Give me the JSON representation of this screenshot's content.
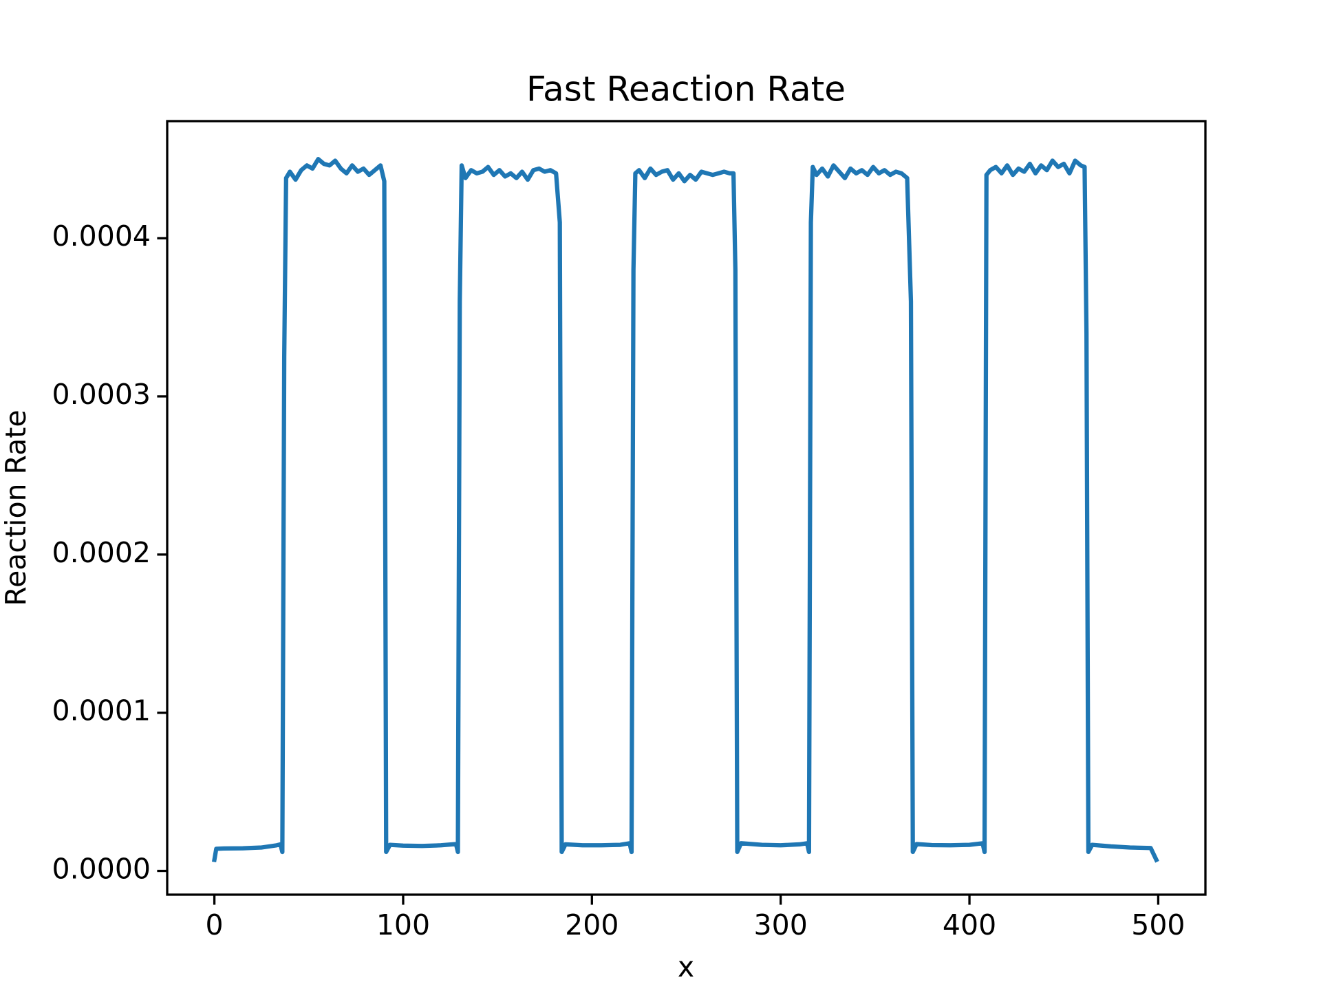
{
  "chart_data": {
    "type": "line",
    "title": "Fast Reaction Rate",
    "x_label": "x",
    "y_label": "Reaction Rate",
    "color": "#1f77b4",
    "x": [
      0,
      1,
      5,
      15,
      25,
      33,
      35,
      36,
      37,
      38,
      40,
      43,
      46,
      49,
      52,
      55,
      58,
      61,
      64,
      67,
      70,
      73,
      76,
      79,
      82,
      85,
      88,
      90,
      91,
      93,
      100,
      110,
      120,
      128,
      129,
      130,
      131,
      133,
      136,
      139,
      142,
      145,
      148,
      151,
      154,
      157,
      160,
      163,
      166,
      169,
      172,
      175,
      178,
      181,
      183,
      184,
      186,
      195,
      205,
      215,
      220,
      221,
      222,
      223,
      225,
      228,
      231,
      234,
      237,
      240,
      243,
      246,
      249,
      252,
      255,
      258,
      261,
      264,
      267,
      270,
      273,
      275,
      276,
      277,
      279,
      290,
      300,
      310,
      314,
      315,
      316,
      317,
      319,
      322,
      325,
      328,
      331,
      334,
      337,
      340,
      343,
      346,
      349,
      352,
      355,
      358,
      361,
      364,
      367,
      369,
      370,
      372,
      380,
      390,
      400,
      407,
      408,
      409,
      411,
      414,
      417,
      420,
      423,
      426,
      429,
      432,
      435,
      438,
      441,
      444,
      447,
      450,
      453,
      456,
      459,
      461,
      462,
      463,
      465,
      475,
      485,
      496,
      499
    ],
    "values": [
      7e-06,
      1.4e-05,
      1.42e-05,
      1.43e-05,
      1.48e-05,
      1.62e-05,
      1.68e-05,
      1.2e-05,
      0.000325,
      0.000438,
      0.000442,
      0.000437,
      0.000443,
      0.000446,
      0.000444,
      0.00045,
      0.000447,
      0.000446,
      0.000449,
      0.000444,
      0.000441,
      0.000446,
      0.000442,
      0.000444,
      0.00044,
      0.000443,
      0.000446,
      0.000436,
      1.2e-05,
      1.65e-05,
      1.6e-05,
      1.58e-05,
      1.62e-05,
      1.7e-05,
      1.2e-05,
      0.00036,
      0.000446,
      0.000438,
      0.000443,
      0.000441,
      0.000442,
      0.000445,
      0.00044,
      0.000443,
      0.000439,
      0.000441,
      0.000438,
      0.000442,
      0.000437,
      0.000443,
      0.000444,
      0.000442,
      0.000443,
      0.000441,
      0.00041,
      1.2e-05,
      1.68e-05,
      1.62e-05,
      1.62e-05,
      1.65e-05,
      1.75e-05,
      1.2e-05,
      0.00038,
      0.000441,
      0.000443,
      0.000438,
      0.000444,
      0.00044,
      0.000442,
      0.000443,
      0.000437,
      0.000441,
      0.000436,
      0.00044,
      0.000437,
      0.000442,
      0.000441,
      0.00044,
      0.000441,
      0.000442,
      0.000441,
      0.000441,
      0.00038,
      1.2e-05,
      1.75e-05,
      1.65e-05,
      1.62e-05,
      1.68e-05,
      1.75e-05,
      1.2e-05,
      0.00041,
      0.000445,
      0.00044,
      0.000444,
      0.000439,
      0.000446,
      0.000442,
      0.000438,
      0.000444,
      0.000441,
      0.000443,
      0.00044,
      0.000445,
      0.000441,
      0.000443,
      0.00044,
      0.000442,
      0.000441,
      0.000438,
      0.00036,
      1.2e-05,
      1.7e-05,
      1.63e-05,
      1.62e-05,
      1.65e-05,
      1.75e-05,
      1.2e-05,
      0.00044,
      0.000443,
      0.000445,
      0.000441,
      0.000446,
      0.00044,
      0.000444,
      0.000442,
      0.000447,
      0.000441,
      0.000446,
      0.000443,
      0.000449,
      0.000445,
      0.000447,
      0.000441,
      0.000449,
      0.000446,
      0.000445,
      0.00034,
      1.2e-05,
      1.65e-05,
      1.55e-05,
      1.48e-05,
      1.45e-05,
      7e-06
    ],
    "xlim": [
      -25,
      525
    ],
    "ylim": [
      -1.5e-05,
      0.000474
    ],
    "xticks": [
      0,
      100,
      200,
      300,
      400,
      500
    ],
    "yticks": [
      {
        "value": 0,
        "label": "0.0000"
      },
      0.0001,
      0.0002,
      0.0003,
      0.0004
    ]
  }
}
